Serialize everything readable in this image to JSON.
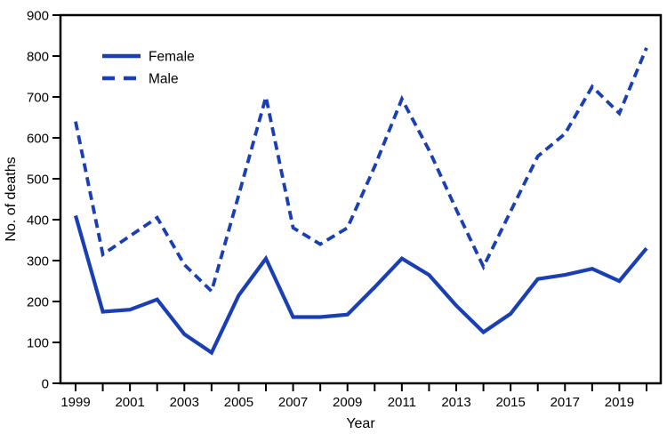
{
  "figure": {
    "background_color": "#ffffff",
    "axis_color": "#000000",
    "text_color": "#000000",
    "series_color": "#1a3fb4"
  },
  "chart_data": {
    "type": "line",
    "title": "",
    "xlabel": "Year",
    "ylabel": "No. of deaths",
    "x": [
      1999,
      2000,
      2001,
      2002,
      2003,
      2004,
      2005,
      2006,
      2007,
      2008,
      2009,
      2010,
      2011,
      2012,
      2013,
      2014,
      2015,
      2016,
      2017,
      2018,
      2019,
      2020
    ],
    "series": [
      {
        "name": "Female",
        "line_style": "solid",
        "color": "#1a3fb4",
        "values": [
          410,
          175,
          180,
          205,
          120,
          75,
          215,
          305,
          162,
          162,
          168,
          235,
          305,
          265,
          190,
          125,
          170,
          255,
          265,
          280,
          250,
          330
        ]
      },
      {
        "name": "Male",
        "line_style": "dashed",
        "color": "#1a3fb4",
        "values": [
          640,
          315,
          360,
          405,
          290,
          225,
          460,
          700,
          380,
          340,
          380,
          530,
          695,
          570,
          425,
          285,
          420,
          555,
          610,
          725,
          660,
          820
        ]
      }
    ],
    "ylim": [
      0,
      900
    ],
    "ytick_step": 100,
    "ytick_labels": [
      "0",
      "100",
      "200",
      "300",
      "400",
      "500",
      "600",
      "700",
      "800",
      "900"
    ],
    "xticks_every_year": true,
    "xtick_labeled_years": [
      1999,
      2001,
      2003,
      2005,
      2007,
      2009,
      2011,
      2013,
      2015,
      2017,
      2019
    ],
    "grid": false,
    "legend_position": "top-left-inside",
    "legend_items": [
      "Female",
      "Male"
    ]
  }
}
